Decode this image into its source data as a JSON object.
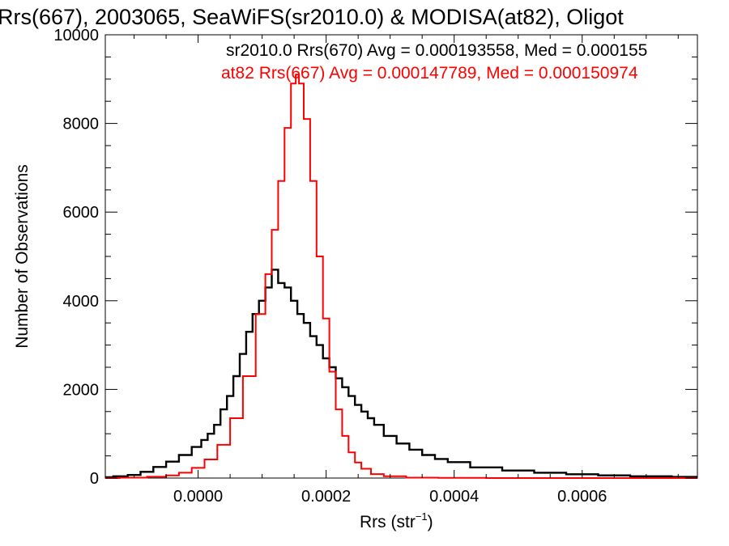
{
  "chart_data": {
    "type": "line",
    "title": "Rrs(667), 2003065, SeaWiFS(sr2010.0) & MODISA(at82), Oligot",
    "xlabel_main": "Rrs (str",
    "xlabel_sup": "−1",
    "xlabel_close": ")",
    "ylabel": "Number of Observations",
    "xlim": [
      -0.000145,
      0.00078
    ],
    "ylim": [
      0,
      10000
    ],
    "x_ticks": [
      0.0,
      0.0002,
      0.0004,
      0.0006
    ],
    "x_tick_labels": [
      "0.0000",
      "0.0002",
      "0.0004",
      "0.0006"
    ],
    "y_ticks": [
      0,
      2000,
      4000,
      6000,
      8000,
      10000
    ],
    "y_tick_labels": [
      "0",
      "2000",
      "4000",
      "6000",
      "8000",
      "10000"
    ],
    "legend_position": "top-right",
    "series": [
      {
        "name": "sr2010.0 Rrs(670) Avg = 0.000193558, Med = 0.000155",
        "color": "#000000",
        "points": [
          [
            -0.000145,
            20
          ],
          [
            -0.00012,
            40
          ],
          [
            -0.0001,
            70
          ],
          [
            -8e-05,
            140
          ],
          [
            -6e-05,
            250
          ],
          [
            -4e-05,
            370
          ],
          [
            -2e-05,
            520
          ],
          [
            0.0,
            700
          ],
          [
            1e-05,
            860
          ],
          [
            2e-05,
            1000
          ],
          [
            3e-05,
            1200
          ],
          [
            4e-05,
            1550
          ],
          [
            5e-05,
            1850
          ],
          [
            6e-05,
            2300
          ],
          [
            7e-05,
            2800
          ],
          [
            8e-05,
            3300
          ],
          [
            9e-05,
            3700
          ],
          [
            0.0001,
            4000
          ],
          [
            0.00011,
            4300
          ],
          [
            0.00012,
            4700
          ],
          [
            0.00013,
            4400
          ],
          [
            0.00014,
            4300
          ],
          [
            0.00015,
            4000
          ],
          [
            0.00016,
            3700
          ],
          [
            0.00017,
            3500
          ],
          [
            0.00018,
            3200
          ],
          [
            0.00019,
            3000
          ],
          [
            0.0002,
            2700
          ],
          [
            0.00021,
            2500
          ],
          [
            0.00022,
            2250
          ],
          [
            0.00023,
            2050
          ],
          [
            0.00024,
            1850
          ],
          [
            0.00025,
            1650
          ],
          [
            0.00026,
            1500
          ],
          [
            0.00027,
            1350
          ],
          [
            0.00028,
            1200
          ],
          [
            0.0003,
            950
          ],
          [
            0.00032,
            780
          ],
          [
            0.00034,
            640
          ],
          [
            0.00036,
            520
          ],
          [
            0.00038,
            430
          ],
          [
            0.0004,
            360
          ],
          [
            0.00045,
            240
          ],
          [
            0.0005,
            170
          ],
          [
            0.00055,
            120
          ],
          [
            0.0006,
            85
          ],
          [
            0.00065,
            60
          ],
          [
            0.0007,
            40
          ],
          [
            0.00078,
            25
          ]
        ]
      },
      {
        "name": "at82 Rrs(667) Avg = 0.000147789, Med = 0.000150974",
        "color": "#ff0000",
        "points": [
          [
            -0.000145,
            0
          ],
          [
            -0.0001,
            10
          ],
          [
            -6e-05,
            30
          ],
          [
            -4e-05,
            60
          ],
          [
            -2e-05,
            120
          ],
          [
            0.0,
            230
          ],
          [
            2e-05,
            420
          ],
          [
            4e-05,
            750
          ],
          [
            6e-05,
            1350
          ],
          [
            8e-05,
            2300
          ],
          [
            0.0001,
            3700
          ],
          [
            0.00011,
            4600
          ],
          [
            0.00012,
            5600
          ],
          [
            0.00013,
            6700
          ],
          [
            0.00014,
            7900
          ],
          [
            0.00015,
            8900
          ],
          [
            0.000155,
            9100
          ],
          [
            0.00016,
            8900
          ],
          [
            0.00017,
            8100
          ],
          [
            0.00018,
            6700
          ],
          [
            0.00019,
            5000
          ],
          [
            0.0002,
            3600
          ],
          [
            0.00021,
            2400
          ],
          [
            0.00022,
            1550
          ],
          [
            0.00023,
            950
          ],
          [
            0.00024,
            580
          ],
          [
            0.00025,
            350
          ],
          [
            0.00026,
            210
          ],
          [
            0.00028,
            90
          ],
          [
            0.0003,
            40
          ],
          [
            0.00035,
            10
          ],
          [
            0.0004,
            3
          ],
          [
            0.0005,
            0
          ],
          [
            0.00078,
            0
          ]
        ]
      }
    ]
  }
}
